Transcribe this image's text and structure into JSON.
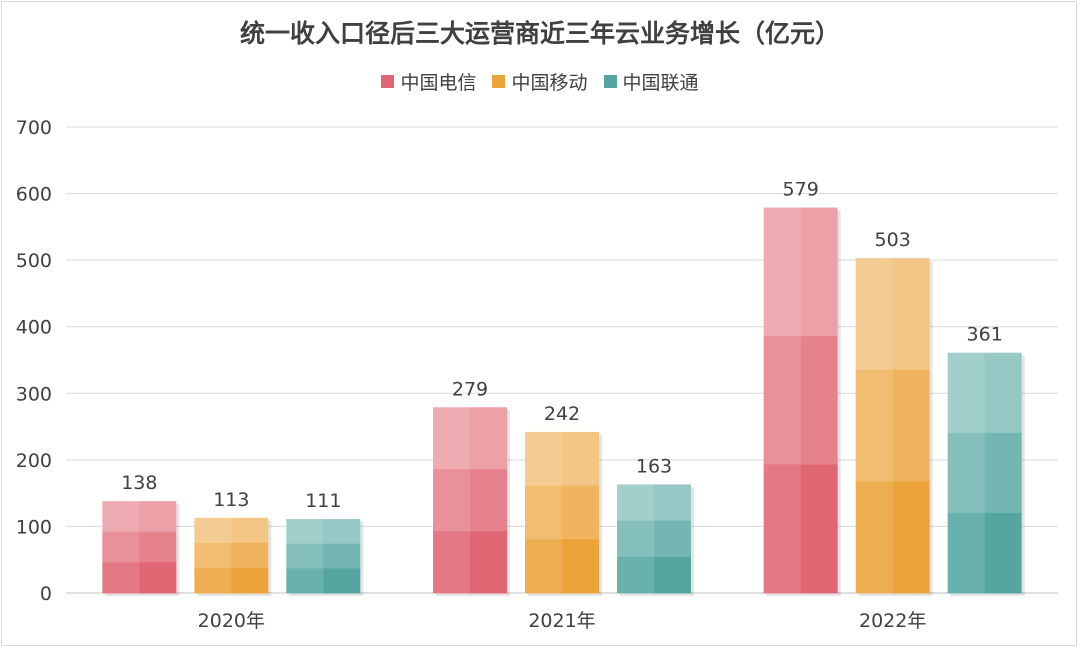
{
  "chart_data": {
    "type": "bar",
    "title": "统一收入口径后三大运营商近三年云业务增长（亿元）",
    "categories": [
      "2020年",
      "2021年",
      "2022年"
    ],
    "series": [
      {
        "name": "中国电信",
        "values": [
          138,
          279,
          579
        ],
        "color": "#e06673"
      },
      {
        "name": "中国移动",
        "values": [
          113,
          242,
          503
        ],
        "color": "#eba33a"
      },
      {
        "name": "中国联通",
        "values": [
          111,
          163,
          361
        ],
        "color": "#55a6a1"
      }
    ],
    "ylim": [
      0,
      700
    ],
    "yticks": [
      0,
      100,
      200,
      300,
      400,
      500,
      600,
      700
    ],
    "grid": true,
    "legend_position": "top"
  }
}
